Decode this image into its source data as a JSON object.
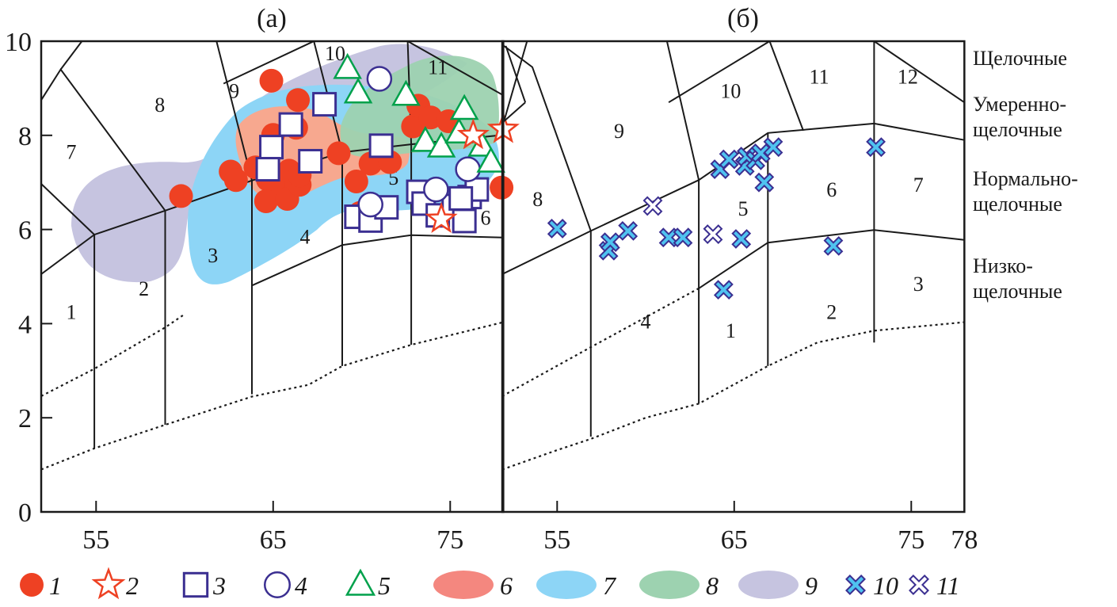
{
  "chart_data": [
    {
      "type": "scatter",
      "panel": "a",
      "title": "(а)",
      "xlabel": "",
      "ylabel": "",
      "xlim": [
        51.9,
        78
      ],
      "ylim": [
        0,
        10
      ],
      "xticks": [
        55,
        65,
        75
      ],
      "yticks": [
        0,
        2,
        4,
        6,
        8,
        10
      ],
      "field_labels": [
        {
          "text": "1",
          "x": 53.6,
          "y": 4.1
        },
        {
          "text": "2",
          "x": 57.7,
          "y": 4.6
        },
        {
          "text": "3",
          "x": 61.6,
          "y": 5.3
        },
        {
          "text": "4",
          "x": 66.8,
          "y": 5.7
        },
        {
          "text": "5",
          "x": 71.8,
          "y": 6.95
        },
        {
          "text": "6",
          "x": 77.0,
          "y": 6.1
        },
        {
          "text": "7",
          "x": 53.6,
          "y": 7.5
        },
        {
          "text": "8",
          "x": 58.6,
          "y": 8.5
        },
        {
          "text": "9",
          "x": 62.8,
          "y": 8.8
        },
        {
          "text": "10",
          "x": 68.5,
          "y": 9.6
        },
        {
          "text": "11",
          "x": 74.3,
          "y": 9.3
        }
      ],
      "series": [
        {
          "name": "1",
          "marker": "filled-circle",
          "color": "#ee4123",
          "points": [
            [
              59.8,
              6.71
            ],
            [
              62.6,
              7.23
            ],
            [
              62.9,
              7.05
            ],
            [
              64.9,
              9.16
            ],
            [
              66.4,
              8.75
            ],
            [
              65.0,
              8.01
            ],
            [
              66.3,
              8.16
            ],
            [
              64.0,
              7.32
            ],
            [
              64.7,
              7.06
            ],
            [
              65.4,
              7.0
            ],
            [
              65.9,
              7.25
            ],
            [
              65.0,
              6.95
            ],
            [
              64.6,
              6.6
            ],
            [
              65.8,
              6.65
            ],
            [
              66.5,
              6.95
            ],
            [
              66.5,
              7.15
            ],
            [
              68.7,
              7.62
            ],
            [
              69.7,
              7.02
            ],
            [
              70.5,
              7.4
            ],
            [
              71.6,
              7.43
            ],
            [
              69.9,
              6.35
            ],
            [
              72.9,
              8.19
            ],
            [
              73.2,
              8.63
            ],
            [
              73.9,
              8.38
            ],
            [
              74.9,
              8.3
            ],
            [
              77.9,
              6.89
            ]
          ]
        },
        {
          "name": "2",
          "marker": "open-star",
          "color": "#ee4123",
          "points": [
            [
              74.5,
              6.22
            ],
            [
              76.3,
              8.0
            ],
            [
              78.0,
              8.13
            ]
          ]
        },
        {
          "name": "3",
          "marker": "open-square",
          "color": "#3b2f91",
          "points": [
            [
              67.9,
              8.66
            ],
            [
              66.0,
              8.23
            ],
            [
              64.9,
              7.75
            ],
            [
              64.7,
              7.28
            ],
            [
              67.1,
              7.45
            ],
            [
              71.1,
              7.78
            ],
            [
              69.7,
              6.27
            ],
            [
              70.5,
              6.19
            ],
            [
              71.4,
              6.47
            ],
            [
              73.2,
              6.8
            ],
            [
              73.5,
              6.55
            ],
            [
              74.3,
              6.3
            ],
            [
              75.2,
              6.5
            ],
            [
              75.8,
              6.18
            ],
            [
              76.1,
              6.69
            ],
            [
              76.5,
              6.85
            ],
            [
              75.6,
              6.66
            ]
          ]
        },
        {
          "name": "4",
          "marker": "open-circle",
          "color": "#3b2f91",
          "points": [
            [
              71.0,
              9.2
            ],
            [
              70.5,
              6.53
            ],
            [
              74.2,
              6.85
            ],
            [
              76.0,
              7.28
            ]
          ]
        },
        {
          "name": "5",
          "marker": "open-triangle",
          "color": "#00a14b",
          "points": [
            [
              69.2,
              9.42
            ],
            [
              69.8,
              8.9
            ],
            [
              72.5,
              8.85
            ],
            [
              73.6,
              7.87
            ],
            [
              74.5,
              7.75
            ],
            [
              75.5,
              8.05
            ],
            [
              75.8,
              8.55
            ],
            [
              76.8,
              7.77
            ],
            [
              77.3,
              7.43
            ]
          ]
        }
      ],
      "regions": [
        {
          "name": "6",
          "color": "#f4877f",
          "fill_color": "#f7a88f"
        },
        {
          "name": "7",
          "color": "#8dd5f6"
        },
        {
          "name": "8",
          "color": "#9dd2b0"
        },
        {
          "name": "9",
          "color": "#c6c4e0"
        }
      ]
    },
    {
      "type": "scatter",
      "panel": "b",
      "title": "(б)",
      "xlabel": "",
      "ylabel": "",
      "xlim": [
        51.9,
        78
      ],
      "ylim": [
        0,
        10
      ],
      "xticks": [
        55,
        65,
        75,
        78
      ],
      "field_labels": [
        {
          "text": "1",
          "x": 64.8,
          "y": 3.7
        },
        {
          "text": "2",
          "x": 70.5,
          "y": 4.1
        },
        {
          "text": "3",
          "x": 75.4,
          "y": 4.7
        },
        {
          "text": "4",
          "x": 60.0,
          "y": 3.9
        },
        {
          "text": "5",
          "x": 65.5,
          "y": 6.3
        },
        {
          "text": "6",
          "x": 70.5,
          "y": 6.7
        },
        {
          "text": "7",
          "x": 75.4,
          "y": 6.8
        },
        {
          "text": "8",
          "x": 53.9,
          "y": 6.5
        },
        {
          "text": "9",
          "x": 58.5,
          "y": 7.95
        },
        {
          "text": "10",
          "x": 64.8,
          "y": 8.8
        },
        {
          "text": "11",
          "x": 69.8,
          "y": 9.1
        },
        {
          "text": "12",
          "x": 74.8,
          "y": 9.1
        }
      ],
      "series": [
        {
          "name": "10",
          "marker": "filled-x",
          "color": "#4fc3f0",
          "edge_color": "#3b2f91",
          "points": [
            [
              55.0,
              6.02
            ],
            [
              57.9,
              5.55
            ],
            [
              58.0,
              5.73
            ],
            [
              59.0,
              5.97
            ],
            [
              61.3,
              5.83
            ],
            [
              62.1,
              5.83
            ],
            [
              64.2,
              7.28
            ],
            [
              64.7,
              7.49
            ],
            [
              65.6,
              7.35
            ],
            [
              65.7,
              7.55
            ],
            [
              66.2,
              7.47
            ],
            [
              66.5,
              7.62
            ],
            [
              67.2,
              7.75
            ],
            [
              66.7,
              7.0
            ],
            [
              65.4,
              5.8
            ],
            [
              64.4,
              4.72
            ],
            [
              70.6,
              5.65
            ],
            [
              73.0,
              7.75
            ]
          ]
        },
        {
          "name": "11",
          "marker": "open-x",
          "color": "#3b2f91",
          "points": [
            [
              60.4,
              6.5
            ],
            [
              63.8,
              5.9
            ]
          ]
        }
      ]
    }
  ],
  "alkalinity_labels": [
    [
      "Щелочные"
    ],
    [
      "Умеренно-",
      "щелочные"
    ],
    [
      "Нормально-",
      "щелочные"
    ],
    [
      "Низко-",
      "щелочные"
    ]
  ],
  "legend": [
    {
      "label": "1",
      "marker": "filled-circle"
    },
    {
      "label": "2",
      "marker": "open-star"
    },
    {
      "label": "3",
      "marker": "open-square"
    },
    {
      "label": "4",
      "marker": "open-circle"
    },
    {
      "label": "5",
      "marker": "open-triangle"
    },
    {
      "label": "6",
      "marker": "ellipse",
      "color": "#f4877f"
    },
    {
      "label": "7",
      "marker": "ellipse",
      "color": "#8dd5f6"
    },
    {
      "label": "8",
      "marker": "ellipse",
      "color": "#9dd2b0"
    },
    {
      "label": "9",
      "marker": "ellipse",
      "color": "#c6c4e0"
    },
    {
      "label": "10",
      "marker": "filled-x"
    },
    {
      "label": "11",
      "marker": "open-x"
    }
  ],
  "colors": {
    "red": "#ee4123",
    "blue": "#3b2f91",
    "green": "#00a14b",
    "cyan": "#4fc3f0",
    "axis": "#1a1a1a"
  }
}
